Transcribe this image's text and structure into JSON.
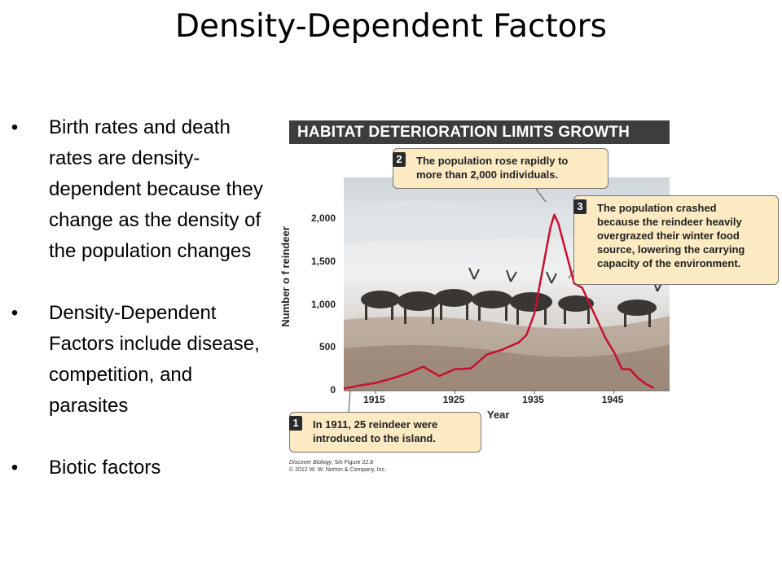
{
  "slide": {
    "title": "Density-Dependent Factors",
    "bullets": [
      "Birth rates and death rates are density-dependent because they change as the density of the population changes",
      "Density-Dependent Factors include disease, competition, and parasites",
      "Biotic factors"
    ],
    "bullet_glyph": "•"
  },
  "figure": {
    "banner": "HABITAT DETERIORATION LIMITS GROWTH",
    "callouts": [
      {
        "num": "1",
        "text": "In 1911, 25 reindeer were\nintroduced to the island."
      },
      {
        "num": "2",
        "text": "The population rose rapidly to\nmore than 2,000 individuals."
      },
      {
        "num": "3",
        "text": "The population crashed\nbecause the reindeer heavily\novergrazed their winter food\nsource, lowering the carrying\ncapacity of the environment."
      }
    ],
    "credit_book": "Discover Biology",
    "credit_rest": ", 5/e Figure 22.8",
    "credit_copyright": "© 2012 W. W. Norton & Company, Inc."
  },
  "chart_data": {
    "type": "line",
    "title": "HABITAT DETERIORATION LIMITS GROWTH",
    "xlabel": "Year",
    "ylabel": "Number o f reindeer",
    "xlim": [
      1911,
      1952
    ],
    "ylim": [
      0,
      2200
    ],
    "x_ticks": [
      1915,
      1925,
      1935,
      1945
    ],
    "y_ticks": [
      0,
      500,
      1000,
      1500,
      2000
    ],
    "y_tick_labels": [
      "0",
      "500",
      "1,000",
      "1,500",
      "2,000"
    ],
    "line_color": "#c8102e",
    "series": [
      {
        "x": [
          1911,
          1913,
          1915,
          1917,
          1919,
          1921,
          1923,
          1925,
          1927,
          1929,
          1931,
          1933,
          1934,
          1935,
          1936,
          1937,
          1937.5,
          1938,
          1939,
          1940,
          1941,
          1942,
          1943,
          1944,
          1945,
          1946,
          1947,
          1948,
          1949,
          1950
        ],
        "y": [
          25,
          60,
          90,
          140,
          200,
          280,
          170,
          250,
          260,
          420,
          480,
          560,
          650,
          900,
          1400,
          1900,
          2050,
          1950,
          1600,
          1250,
          1200,
          1000,
          800,
          600,
          450,
          250,
          250,
          150,
          80,
          30
        ]
      }
    ]
  }
}
